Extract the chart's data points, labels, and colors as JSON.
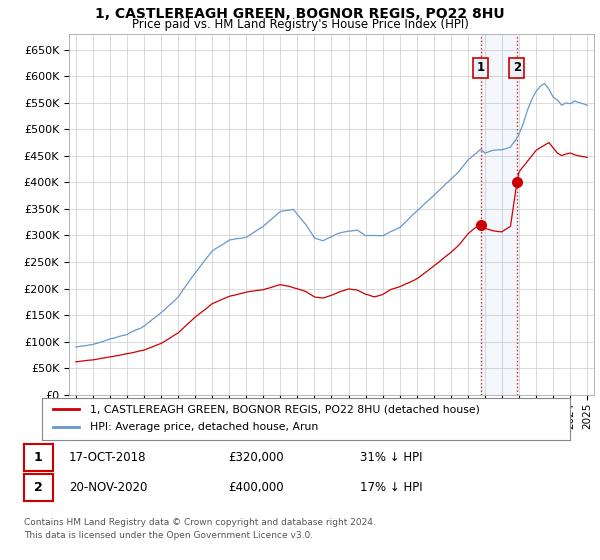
{
  "title1": "1, CASTLEREAGH GREEN, BOGNOR REGIS, PO22 8HU",
  "title2": "Price paid vs. HM Land Registry's House Price Index (HPI)",
  "legend1": "1, CASTLEREAGH GREEN, BOGNOR REGIS, PO22 8HU (detached house)",
  "legend2": "HPI: Average price, detached house, Arun",
  "sale1_date": "17-OCT-2018",
  "sale1_price": "£320,000",
  "sale1_hpi": "31% ↓ HPI",
  "sale2_date": "20-NOV-2020",
  "sale2_price": "£400,000",
  "sale2_hpi": "17% ↓ HPI",
  "footnote1": "Contains HM Land Registry data © Crown copyright and database right 2024.",
  "footnote2": "This data is licensed under the Open Government Licence v3.0.",
  "red_color": "#cc0000",
  "blue_color": "#6699cc",
  "background_color": "#ffffff",
  "grid_color": "#cccccc",
  "ylim_min": 0,
  "ylim_max": 680000,
  "sale1_yr": 2018.75,
  "sale1_val": 320000,
  "sale2_yr": 2020.875,
  "sale2_val": 400000
}
